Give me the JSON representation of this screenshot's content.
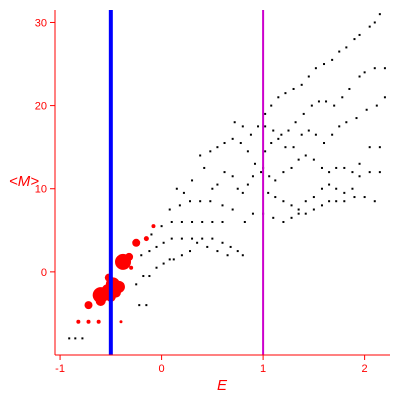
{
  "chart_data": {
    "type": "scatter",
    "xlabel": "E",
    "ylabel": "<M>",
    "xlim": [
      -1.05,
      2.25
    ],
    "ylim": [
      -10,
      31.5
    ],
    "x_ticks": [
      {
        "value": -1,
        "label": "-1"
      },
      {
        "value": 0,
        "label": "0"
      },
      {
        "value": 1,
        "label": "1"
      },
      {
        "value": 2,
        "label": "2"
      }
    ],
    "y_ticks": [
      {
        "value": 0,
        "label": "0"
      },
      {
        "value": 10,
        "label": "10"
      },
      {
        "value": 20,
        "label": "20"
      },
      {
        "value": 30,
        "label": "30"
      }
    ],
    "axis_color": "#ff0000",
    "vertical_lines": [
      {
        "x": -0.5,
        "color": "#0000ff"
      },
      {
        "x": 1.0,
        "color": "#cc00cc"
      }
    ],
    "series": [
      {
        "marker_color": "#000000",
        "points": [
          [
            -0.91,
            -8
          ],
          [
            -0.85,
            -8
          ],
          [
            -0.78,
            -8
          ],
          [
            -0.22,
            -4
          ],
          [
            -0.15,
            -4
          ],
          [
            -0.38,
            -1.5
          ],
          [
            -0.25,
            -1.5
          ],
          [
            -0.18,
            -0.5
          ],
          [
            -0.12,
            -0.5
          ],
          [
            -0.05,
            0.5
          ],
          [
            0.02,
            1.0
          ],
          [
            0.08,
            1.5
          ],
          [
            0.12,
            1.5
          ],
          [
            0.2,
            2.0
          ],
          [
            0.28,
            2.5
          ],
          [
            0.35,
            3.5
          ],
          [
            0.45,
            3.0
          ],
          [
            0.55,
            2.5
          ],
          [
            0.65,
            2.0
          ],
          [
            0.8,
            2.0
          ],
          [
            -0.2,
            2.0
          ],
          [
            -0.12,
            2.5
          ],
          [
            -0.05,
            3.0
          ],
          [
            0.02,
            3.5
          ],
          [
            0.1,
            4.0
          ],
          [
            0.2,
            4.0
          ],
          [
            0.3,
            4.0
          ],
          [
            0.4,
            4.0
          ],
          [
            0.5,
            4.0
          ],
          [
            0.6,
            3.5
          ],
          [
            0.68,
            3.0
          ],
          [
            0.75,
            2.5
          ],
          [
            -0.1,
            4.5
          ],
          [
            0.0,
            5.5
          ],
          [
            0.1,
            6.0
          ],
          [
            0.2,
            6.0
          ],
          [
            0.3,
            6.0
          ],
          [
            0.4,
            6.0
          ],
          [
            0.5,
            6.0
          ],
          [
            0.6,
            6.0
          ],
          [
            0.08,
            7.5
          ],
          [
            0.18,
            8.0
          ],
          [
            0.28,
            8.5
          ],
          [
            0.38,
            8.5
          ],
          [
            0.48,
            8.5
          ],
          [
            0.6,
            8.0
          ],
          [
            0.7,
            7.5
          ],
          [
            0.82,
            6.0
          ],
          [
            0.9,
            7.0
          ],
          [
            0.15,
            10.0
          ],
          [
            0.22,
            9.5
          ],
          [
            0.3,
            11.0
          ],
          [
            0.42,
            12.5
          ],
          [
            0.5,
            10.0
          ],
          [
            0.55,
            10.5
          ],
          [
            0.62,
            12.0
          ],
          [
            0.7,
            11.5
          ],
          [
            0.75,
            10.0
          ],
          [
            0.8,
            9.5
          ],
          [
            0.85,
            10.5
          ],
          [
            0.9,
            11.5
          ],
          [
            0.38,
            14.0
          ],
          [
            0.48,
            14.5
          ],
          [
            0.55,
            15.0
          ],
          [
            0.62,
            15.5
          ],
          [
            0.7,
            16.0
          ],
          [
            0.78,
            15.5
          ],
          [
            0.85,
            14.5
          ],
          [
            0.92,
            13.0
          ],
          [
            0.98,
            12.0
          ],
          [
            0.72,
            18.0
          ],
          [
            0.8,
            17.5
          ],
          [
            0.88,
            16.5
          ],
          [
            0.95,
            17.5
          ],
          [
            1.02,
            19.0
          ],
          [
            1.08,
            20.0
          ],
          [
            1.15,
            21.0
          ],
          [
            1.22,
            21.5
          ],
          [
            1.3,
            22.0
          ],
          [
            1.38,
            22.5
          ],
          [
            1.45,
            23.5
          ],
          [
            1.52,
            24.5
          ],
          [
            1.6,
            25.0
          ],
          [
            1.68,
            25.5
          ],
          [
            1.75,
            26.5
          ],
          [
            1.82,
            27.0
          ],
          [
            1.9,
            28.0
          ],
          [
            1.95,
            28.5
          ],
          [
            2.05,
            29.5
          ],
          [
            2.1,
            30.0
          ],
          [
            2.15,
            31.0
          ],
          [
            1.02,
            17.5
          ],
          [
            1.1,
            17.0
          ],
          [
            1.18,
            16.5
          ],
          [
            1.25,
            17.0
          ],
          [
            1.32,
            18.0
          ],
          [
            1.4,
            19.0
          ],
          [
            1.48,
            20.0
          ],
          [
            1.55,
            20.5
          ],
          [
            1.62,
            20.5
          ],
          [
            1.7,
            20.0
          ],
          [
            1.78,
            21.0
          ],
          [
            1.85,
            22.0
          ],
          [
            1.95,
            23.5
          ],
          [
            2.0,
            24.0
          ],
          [
            2.1,
            24.5
          ],
          [
            2.2,
            24.5
          ],
          [
            1.02,
            14.5
          ],
          [
            1.08,
            15.5
          ],
          [
            1.15,
            16.0
          ],
          [
            1.22,
            15.0
          ],
          [
            1.3,
            15.0
          ],
          [
            1.38,
            16.5
          ],
          [
            1.45,
            17.0
          ],
          [
            1.52,
            16.5
          ],
          [
            1.6,
            15.5
          ],
          [
            1.68,
            16.5
          ],
          [
            1.75,
            17.5
          ],
          [
            1.82,
            18.0
          ],
          [
            1.92,
            18.5
          ],
          [
            2.02,
            19.5
          ],
          [
            2.12,
            20.0
          ],
          [
            2.2,
            21.0
          ],
          [
            1.0,
            12.5
          ],
          [
            1.06,
            11.5
          ],
          [
            1.12,
            11.0
          ],
          [
            1.2,
            12.0
          ],
          [
            1.28,
            12.5
          ],
          [
            1.35,
            13.5
          ],
          [
            1.42,
            14.0
          ],
          [
            1.5,
            13.5
          ],
          [
            1.58,
            12.5
          ],
          [
            1.65,
            12.0
          ],
          [
            1.72,
            12.5
          ],
          [
            1.8,
            12.5
          ],
          [
            1.88,
            12.0
          ],
          [
            1.95,
            13.0
          ],
          [
            2.05,
            15.0
          ],
          [
            2.15,
            15.0
          ],
          [
            1.05,
            9.5
          ],
          [
            1.12,
            9.0
          ],
          [
            1.2,
            8.5
          ],
          [
            1.28,
            8.0
          ],
          [
            1.35,
            7.5
          ],
          [
            1.42,
            8.5
          ],
          [
            1.5,
            9.0
          ],
          [
            1.58,
            10.0
          ],
          [
            1.65,
            10.5
          ],
          [
            1.72,
            10.0
          ],
          [
            1.8,
            9.5
          ],
          [
            1.88,
            10.0
          ],
          [
            1.95,
            11.5
          ],
          [
            2.05,
            12.0
          ],
          [
            2.15,
            12.0
          ],
          [
            1.0,
            7.0
          ],
          [
            1.1,
            6.5
          ],
          [
            1.2,
            6.0
          ],
          [
            1.28,
            6.5
          ],
          [
            1.35,
            7.0
          ],
          [
            1.42,
            7.0
          ],
          [
            1.5,
            7.5
          ],
          [
            1.58,
            8.0
          ],
          [
            1.65,
            8.5
          ],
          [
            1.72,
            8.5
          ],
          [
            1.8,
            8.5
          ],
          [
            1.9,
            9.0
          ],
          [
            2.0,
            9.0
          ],
          [
            2.1,
            8.5
          ]
        ]
      },
      {
        "marker_color": "#ff0000",
        "points": [
          [
            -0.82,
            -6,
            2
          ],
          [
            -0.72,
            -6,
            2
          ],
          [
            -0.62,
            -6,
            2
          ],
          [
            -0.4,
            -6,
            1.5
          ],
          [
            -0.72,
            -4,
            4
          ],
          [
            -0.6,
            -3.5,
            5
          ],
          [
            -0.6,
            -2.8,
            8
          ],
          [
            -0.53,
            -2.2,
            6
          ],
          [
            -0.48,
            -1.5,
            7
          ],
          [
            -0.5,
            -3.0,
            5
          ],
          [
            -0.45,
            -2.5,
            5
          ],
          [
            -0.42,
            -1.8,
            6
          ],
          [
            -0.52,
            -0.7,
            4
          ],
          [
            -0.38,
            1.2,
            8
          ],
          [
            -0.32,
            1.8,
            4
          ],
          [
            -0.25,
            3.5,
            4
          ],
          [
            -0.15,
            4.0,
            2.5
          ],
          [
            -0.08,
            5.5,
            2
          ],
          [
            -0.3,
            0.5,
            2
          ]
        ]
      }
    ]
  }
}
